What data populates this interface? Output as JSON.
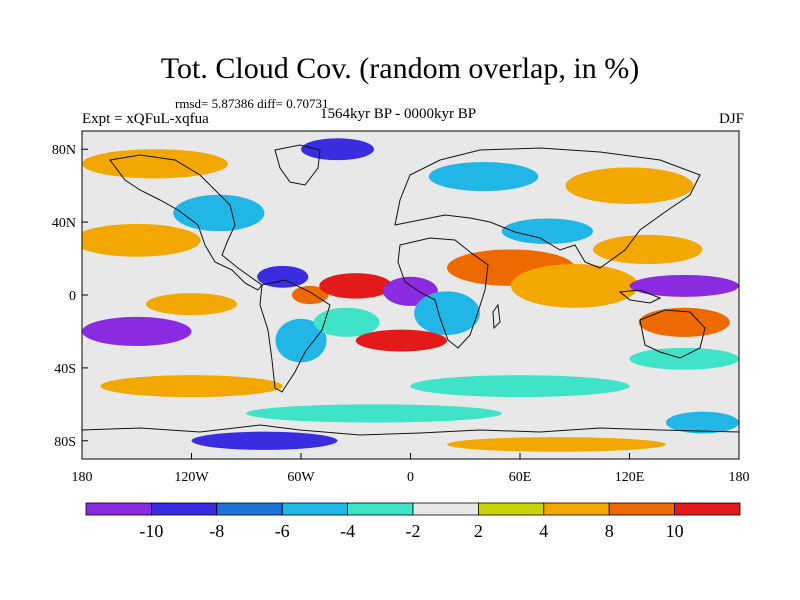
{
  "figure": {
    "title": "Tot. Cloud Cov. (random overlap, in %)",
    "stats": "rmsd= 5.87386 diff= 0.70731",
    "experiment": "Expt = xQFuL-xqfua",
    "period": "1564kyr BP - 0000kyr BP",
    "season": "DJF"
  },
  "chart_data": {
    "type": "heatmap",
    "title": "Tot. Cloud Cov. (random overlap, in %)",
    "subtitle": "1564kyr BP - 0000kyr BP",
    "x_axis": {
      "range": [
        -180,
        180
      ],
      "ticks": [
        {
          "value": -180,
          "label": "180"
        },
        {
          "value": -120,
          "label": "120W"
        },
        {
          "value": -60,
          "label": "60W"
        },
        {
          "value": 0,
          "label": "0"
        },
        {
          "value": 60,
          "label": "60E"
        },
        {
          "value": 120,
          "label": "120E"
        },
        {
          "value": 180,
          "label": "180"
        }
      ]
    },
    "y_axis": {
      "range": [
        -90,
        90
      ],
      "ticks": [
        {
          "value": 80,
          "label": "80N"
        },
        {
          "value": 40,
          "label": "40N"
        },
        {
          "value": 0,
          "label": "0"
        },
        {
          "value": -40,
          "label": "40S"
        },
        {
          "value": -80,
          "label": "80S"
        }
      ]
    },
    "colorbar": {
      "bins": [
        {
          "range": [
            -99,
            -10
          ],
          "color": "#8a2be2"
        },
        {
          "range": [
            -10,
            -8
          ],
          "color": "#3a2ce0"
        },
        {
          "range": [
            -8,
            -6
          ],
          "color": "#1d73d8"
        },
        {
          "range": [
            -6,
            -4
          ],
          "color": "#22b6e6"
        },
        {
          "range": [
            -4,
            -2
          ],
          "color": "#3fe3c8"
        },
        {
          "range": [
            -2,
            2
          ],
          "color": "#e8e8e8"
        },
        {
          "range": [
            2,
            4
          ],
          "color": "#c6d400"
        },
        {
          "range": [
            4,
            8
          ],
          "color": "#f2a800"
        },
        {
          "range": [
            8,
            10
          ],
          "color": "#ee6a00"
        },
        {
          "range": [
            10,
            99
          ],
          "color": "#e41a1a"
        }
      ],
      "labels": [
        "-10",
        "-8",
        "-6",
        "-4",
        "-2",
        "2",
        "4",
        "8",
        "10"
      ]
    },
    "anomaly_blobs": [
      {
        "lon": -150,
        "lat": -20,
        "rlon": 30,
        "rlat": 8,
        "value": -11
      },
      {
        "lon": -120,
        "lat": -5,
        "rlon": 25,
        "rlat": 6,
        "value": 6
      },
      {
        "lon": -150,
        "lat": 30,
        "rlon": 35,
        "rlat": 9,
        "value": 6
      },
      {
        "lon": -105,
        "lat": 45,
        "rlon": 25,
        "rlat": 10,
        "value": -5
      },
      {
        "lon": -70,
        "lat": 10,
        "rlon": 14,
        "rlat": 6,
        "value": -9
      },
      {
        "lon": -55,
        "lat": 0,
        "rlon": 10,
        "rlat": 5,
        "value": 9
      },
      {
        "lon": -60,
        "lat": -25,
        "rlon": 14,
        "rlat": 12,
        "value": -5
      },
      {
        "lon": -35,
        "lat": -15,
        "rlon": 18,
        "rlat": 8,
        "value": -4
      },
      {
        "lon": -30,
        "lat": 5,
        "rlon": 20,
        "rlat": 7,
        "value": 11
      },
      {
        "lon": 0,
        "lat": 2,
        "rlon": 15,
        "rlat": 8,
        "value": -11
      },
      {
        "lon": 20,
        "lat": -10,
        "rlon": 18,
        "rlat": 12,
        "value": -5
      },
      {
        "lon": -5,
        "lat": -25,
        "rlon": 25,
        "rlat": 6,
        "value": 10
      },
      {
        "lon": 55,
        "lat": 15,
        "rlon": 35,
        "rlat": 10,
        "value": 9
      },
      {
        "lon": 90,
        "lat": 5,
        "rlon": 35,
        "rlat": 12,
        "value": 7
      },
      {
        "lon": 75,
        "lat": 35,
        "rlon": 25,
        "rlat": 7,
        "value": -5
      },
      {
        "lon": 130,
        "lat": 25,
        "rlon": 30,
        "rlat": 8,
        "value": 6
      },
      {
        "lon": 150,
        "lat": 5,
        "rlon": 30,
        "rlat": 6,
        "value": -11
      },
      {
        "lon": 150,
        "lat": -15,
        "rlon": 25,
        "rlat": 8,
        "value": 9
      },
      {
        "lon": 150,
        "lat": -35,
        "rlon": 30,
        "rlat": 6,
        "value": -4
      },
      {
        "lon": -120,
        "lat": -50,
        "rlon": 50,
        "rlat": 6,
        "value": 4
      },
      {
        "lon": 60,
        "lat": -50,
        "rlon": 60,
        "rlat": 6,
        "value": -3
      },
      {
        "lon": -20,
        "lat": -65,
        "rlon": 70,
        "rlat": 5,
        "value": -3
      },
      {
        "lon": -140,
        "lat": 72,
        "rlon": 40,
        "rlat": 8,
        "value": 5
      },
      {
        "lon": -40,
        "lat": 80,
        "rlon": 20,
        "rlat": 6,
        "value": -10
      },
      {
        "lon": 40,
        "lat": 65,
        "rlon": 30,
        "rlat": 8,
        "value": -5
      },
      {
        "lon": 120,
        "lat": 60,
        "rlon": 35,
        "rlat": 10,
        "value": 4
      },
      {
        "lon": -80,
        "lat": -80,
        "rlon": 40,
        "rlat": 5,
        "value": -9
      },
      {
        "lon": 80,
        "lat": -82,
        "rlon": 60,
        "rlat": 4,
        "value": 6
      },
      {
        "lon": 160,
        "lat": -70,
        "rlon": 20,
        "rlat": 6,
        "value": -5
      }
    ]
  }
}
